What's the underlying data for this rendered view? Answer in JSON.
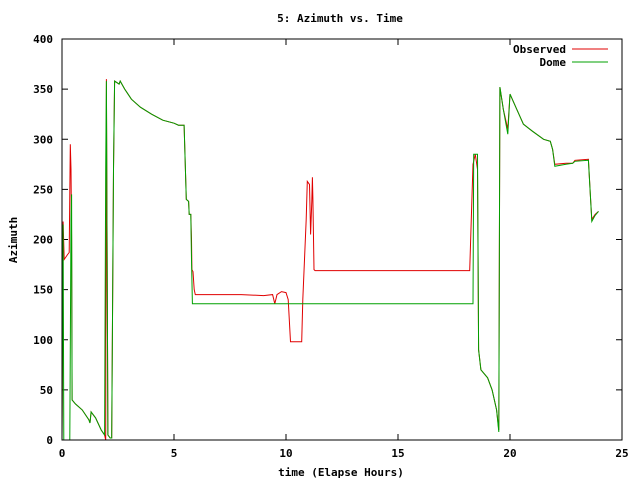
{
  "chart_data": {
    "type": "line",
    "title": "5: Azimuth vs. Time",
    "xlabel": "time (Elapse Hours)",
    "ylabel": "Azimuth",
    "xlim": [
      0,
      25
    ],
    "ylim": [
      0,
      400
    ],
    "x_ticks": [
      "0",
      "5",
      "10",
      "15",
      "20",
      "25"
    ],
    "y_ticks": [
      "0",
      "50",
      "100",
      "150",
      "200",
      "250",
      "300",
      "350",
      "400"
    ],
    "grid": false,
    "legend_position": "top-right",
    "series": [
      {
        "name": "Observed",
        "color": "#e00000",
        "points": [
          [
            0.0,
            0
          ],
          [
            0.05,
            218
          ],
          [
            0.1,
            180
          ],
          [
            0.25,
            185
          ],
          [
            0.32,
            187
          ],
          [
            0.37,
            295
          ],
          [
            0.4,
            270
          ],
          [
            0.43,
            200
          ],
          [
            0.45,
            40
          ],
          [
            0.6,
            36
          ],
          [
            0.9,
            30
          ],
          [
            1.2,
            20
          ],
          [
            1.25,
            17
          ],
          [
            1.3,
            28
          ],
          [
            1.5,
            22
          ],
          [
            1.75,
            10
          ],
          [
            1.9,
            5
          ],
          [
            1.95,
            0
          ],
          [
            1.98,
            360
          ],
          [
            2.05,
            5
          ],
          [
            2.15,
            2
          ],
          [
            2.22,
            2
          ],
          [
            2.3,
            270
          ],
          [
            2.35,
            358
          ],
          [
            2.55,
            355
          ],
          [
            2.6,
            358
          ],
          [
            2.8,
            350
          ],
          [
            3.1,
            340
          ],
          [
            3.5,
            332
          ],
          [
            4.0,
            325
          ],
          [
            4.5,
            319
          ],
          [
            5.0,
            316
          ],
          [
            5.2,
            314
          ],
          [
            5.45,
            314
          ],
          [
            5.55,
            240
          ],
          [
            5.65,
            238
          ],
          [
            5.68,
            225
          ],
          [
            5.75,
            225
          ],
          [
            5.78,
            200
          ],
          [
            5.8,
            170
          ],
          [
            5.85,
            168
          ],
          [
            5.9,
            150
          ],
          [
            5.95,
            145
          ],
          [
            6.2,
            145
          ],
          [
            8.0,
            145
          ],
          [
            9.0,
            144
          ],
          [
            9.4,
            145
          ],
          [
            9.5,
            136
          ],
          [
            9.6,
            145
          ],
          [
            9.8,
            148
          ],
          [
            10.0,
            147
          ],
          [
            10.1,
            140
          ],
          [
            10.2,
            98
          ],
          [
            10.7,
            98
          ],
          [
            10.75,
            140
          ],
          [
            10.9,
            220
          ],
          [
            10.95,
            258
          ],
          [
            11.05,
            255
          ],
          [
            11.1,
            205
          ],
          [
            11.15,
            238
          ],
          [
            11.18,
            262
          ],
          [
            11.2,
            240
          ],
          [
            11.25,
            170
          ],
          [
            11.3,
            169
          ],
          [
            15.0,
            169
          ],
          [
            18.2,
            169
          ],
          [
            18.3,
            240
          ],
          [
            18.35,
            275
          ],
          [
            18.45,
            285
          ],
          [
            18.55,
            270
          ],
          [
            18.6,
            90
          ],
          [
            18.7,
            70
          ],
          [
            19.0,
            62
          ],
          [
            19.2,
            50
          ],
          [
            19.4,
            30
          ],
          [
            19.5,
            10
          ],
          [
            19.55,
            352
          ],
          [
            19.7,
            330
          ],
          [
            19.9,
            310
          ],
          [
            20.0,
            345
          ],
          [
            20.3,
            330
          ],
          [
            20.6,
            315
          ],
          [
            21.0,
            308
          ],
          [
            21.5,
            300
          ],
          [
            21.8,
            298
          ],
          [
            21.9,
            290
          ],
          [
            22.0,
            275
          ],
          [
            22.5,
            276
          ],
          [
            22.8,
            276
          ],
          [
            22.9,
            279
          ],
          [
            23.5,
            280
          ],
          [
            23.6,
            240
          ],
          [
            23.65,
            220
          ],
          [
            23.8,
            225
          ],
          [
            23.95,
            228
          ]
        ]
      },
      {
        "name": "Dome",
        "color": "#00a000",
        "points": [
          [
            0.0,
            0
          ],
          [
            0.05,
            215
          ],
          [
            0.08,
            0
          ],
          [
            0.35,
            0
          ],
          [
            0.4,
            220
          ],
          [
            0.43,
            245
          ],
          [
            0.45,
            40
          ],
          [
            0.6,
            36
          ],
          [
            0.9,
            30
          ],
          [
            1.2,
            20
          ],
          [
            1.25,
            17
          ],
          [
            1.3,
            28
          ],
          [
            1.5,
            22
          ],
          [
            1.75,
            10
          ],
          [
            1.9,
            5
          ],
          [
            1.95,
            270
          ],
          [
            1.98,
            358
          ],
          [
            2.05,
            5
          ],
          [
            2.15,
            2
          ],
          [
            2.22,
            2
          ],
          [
            2.3,
            270
          ],
          [
            2.35,
            358
          ],
          [
            2.55,
            355
          ],
          [
            2.6,
            358
          ],
          [
            2.8,
            350
          ],
          [
            3.1,
            340
          ],
          [
            3.5,
            332
          ],
          [
            4.0,
            325
          ],
          [
            4.5,
            319
          ],
          [
            5.0,
            316
          ],
          [
            5.2,
            314
          ],
          [
            5.45,
            314
          ],
          [
            5.55,
            240
          ],
          [
            5.65,
            238
          ],
          [
            5.68,
            225
          ],
          [
            5.75,
            225
          ],
          [
            5.78,
            180
          ],
          [
            5.82,
            136
          ],
          [
            10.0,
            136
          ],
          [
            15.0,
            136
          ],
          [
            18.35,
            136
          ],
          [
            18.38,
            285
          ],
          [
            18.55,
            285
          ],
          [
            18.6,
            90
          ],
          [
            18.7,
            70
          ],
          [
            19.0,
            62
          ],
          [
            19.2,
            50
          ],
          [
            19.4,
            30
          ],
          [
            19.5,
            8
          ],
          [
            19.55,
            352
          ],
          [
            19.7,
            330
          ],
          [
            19.9,
            305
          ],
          [
            20.0,
            345
          ],
          [
            20.3,
            330
          ],
          [
            20.6,
            315
          ],
          [
            21.0,
            308
          ],
          [
            21.5,
            300
          ],
          [
            21.8,
            298
          ],
          [
            21.9,
            290
          ],
          [
            22.0,
            273
          ],
          [
            22.5,
            275
          ],
          [
            22.8,
            276
          ],
          [
            22.9,
            278
          ],
          [
            23.5,
            279
          ],
          [
            23.6,
            240
          ],
          [
            23.65,
            218
          ],
          [
            23.8,
            224
          ],
          [
            23.95,
            228
          ]
        ]
      }
    ]
  }
}
